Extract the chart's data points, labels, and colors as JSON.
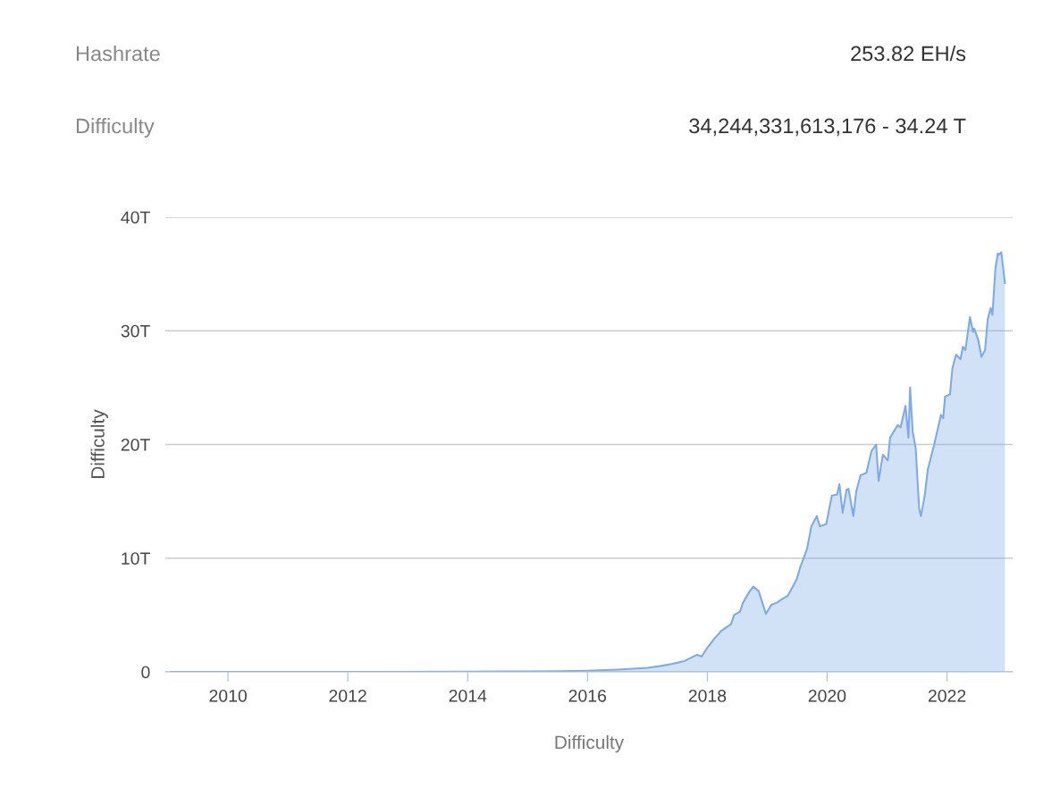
{
  "chart_data": {
    "type": "area",
    "xlabel": "Difficulty",
    "ylabel": "Difficulty",
    "annotations": [
      "Hashrate",
      "253.82 EH/s",
      "Difficulty",
      "34,244,331,613,176 - 34.24 T"
    ],
    "xlim": [
      "2008-12-15",
      "2023-02-05"
    ],
    "xticks": [
      {
        "value": "2010-01-01",
        "label": "2010"
      },
      {
        "value": "2012-01-01",
        "label": "2012"
      },
      {
        "value": "2014-01-01",
        "label": "2014"
      },
      {
        "value": "2016-01-01",
        "label": "2016"
      },
      {
        "value": "2018-01-01",
        "label": "2018"
      },
      {
        "value": "2020-01-01",
        "label": "2020"
      },
      {
        "value": "2022-01-01",
        "label": "2022"
      }
    ],
    "ylim": [
      0,
      40
    ],
    "yticks": [
      0,
      {
        "value": 10,
        "label": "10T"
      },
      {
        "value": 20,
        "label": "20T"
      },
      {
        "value": 30,
        "label": "30T"
      },
      {
        "value": 40,
        "label": "40T"
      }
    ],
    "grid": "y",
    "legend": false,
    "x": [
      "2009-01-19",
      "2010-07-01",
      "2012-07-01",
      "2014-01-01",
      "2014-07-01",
      "2015-01-01",
      "2015-07-01",
      "2016-01-01",
      "2016-07-01",
      "2017-01-01",
      "2017-03-16",
      "2017-06-02",
      "2017-08-14",
      "2017-10-30",
      "2017-11-28",
      "2017-12-24",
      "2018-02-11",
      "2018-03-27",
      "2018-05-25",
      "2018-06-13",
      "2018-07-19",
      "2018-08-07",
      "2018-09-17",
      "2018-10-08",
      "2018-11-10",
      "2018-12-24",
      "2019-01-26",
      "2019-03-02",
      "2019-04-01",
      "2019-05-07",
      "2019-06-06",
      "2019-07-01",
      "2019-07-19",
      "2019-08-14",
      "2019-09-02",
      "2019-09-27",
      "2019-10-30",
      "2019-11-18",
      "2019-12-27",
      "2020-01-30",
      "2020-03-02",
      "2020-03-16",
      "2020-04-05",
      "2020-04-28",
      "2020-05-11",
      "2020-06-09",
      "2020-06-27",
      "2020-07-23",
      "2020-08-28",
      "2020-09-27",
      "2020-10-26",
      "2020-11-10",
      "2020-12-06",
      "2021-01-05",
      "2021-01-19",
      "2021-03-06",
      "2021-03-24",
      "2021-04-23",
      "2021-05-11",
      "2021-05-21",
      "2021-06-06",
      "2021-06-24",
      "2021-07-15",
      "2021-07-26",
      "2021-08-18",
      "2021-09-06",
      "2021-10-15",
      "2021-11-25",
      "2021-12-09",
      "2021-12-20",
      "2022-01-19",
      "2022-02-03",
      "2022-02-25",
      "2022-03-24",
      "2022-04-08",
      "2022-04-23",
      "2022-05-21",
      "2022-06-09",
      "2022-06-16",
      "2022-07-12",
      "2022-07-30",
      "2022-08-21",
      "2022-09-06",
      "2022-09-24",
      "2022-10-05",
      "2022-10-23",
      "2022-11-07",
      "2022-11-14",
      "2022-11-28",
      "2022-12-20"
    ],
    "series": [
      {
        "color": "#7eabe6",
        "values": [
          0.0,
          0.0,
          0.0,
          0.01,
          0.03,
          0.04,
          0.05,
          0.1,
          0.2,
          0.35,
          0.5,
          0.7,
          0.95,
          1.5,
          1.35,
          1.95,
          2.9,
          3.6,
          4.2,
          5.0,
          5.3,
          6.1,
          7.1,
          7.5,
          7.1,
          5.1,
          5.9,
          6.1,
          6.4,
          6.7,
          7.5,
          8.2,
          9.1,
          10.1,
          10.9,
          12.8,
          13.7,
          12.8,
          13.0,
          15.5,
          15.6,
          16.5,
          14.0,
          16.0,
          16.1,
          13.7,
          15.9,
          17.3,
          17.5,
          19.4,
          20.0,
          16.8,
          19.1,
          18.6,
          20.6,
          21.7,
          21.5,
          23.4,
          20.6,
          25.0,
          21.1,
          19.7,
          14.4,
          13.7,
          15.5,
          17.8,
          20.0,
          22.6,
          22.3,
          24.2,
          24.4,
          26.7,
          27.9,
          27.5,
          28.6,
          28.3,
          31.2,
          29.9,
          30.2,
          29.1,
          27.7,
          28.3,
          31.0,
          32.0,
          31.4,
          35.5,
          36.8,
          36.7,
          36.9,
          34.2
        ]
      }
    ]
  }
}
